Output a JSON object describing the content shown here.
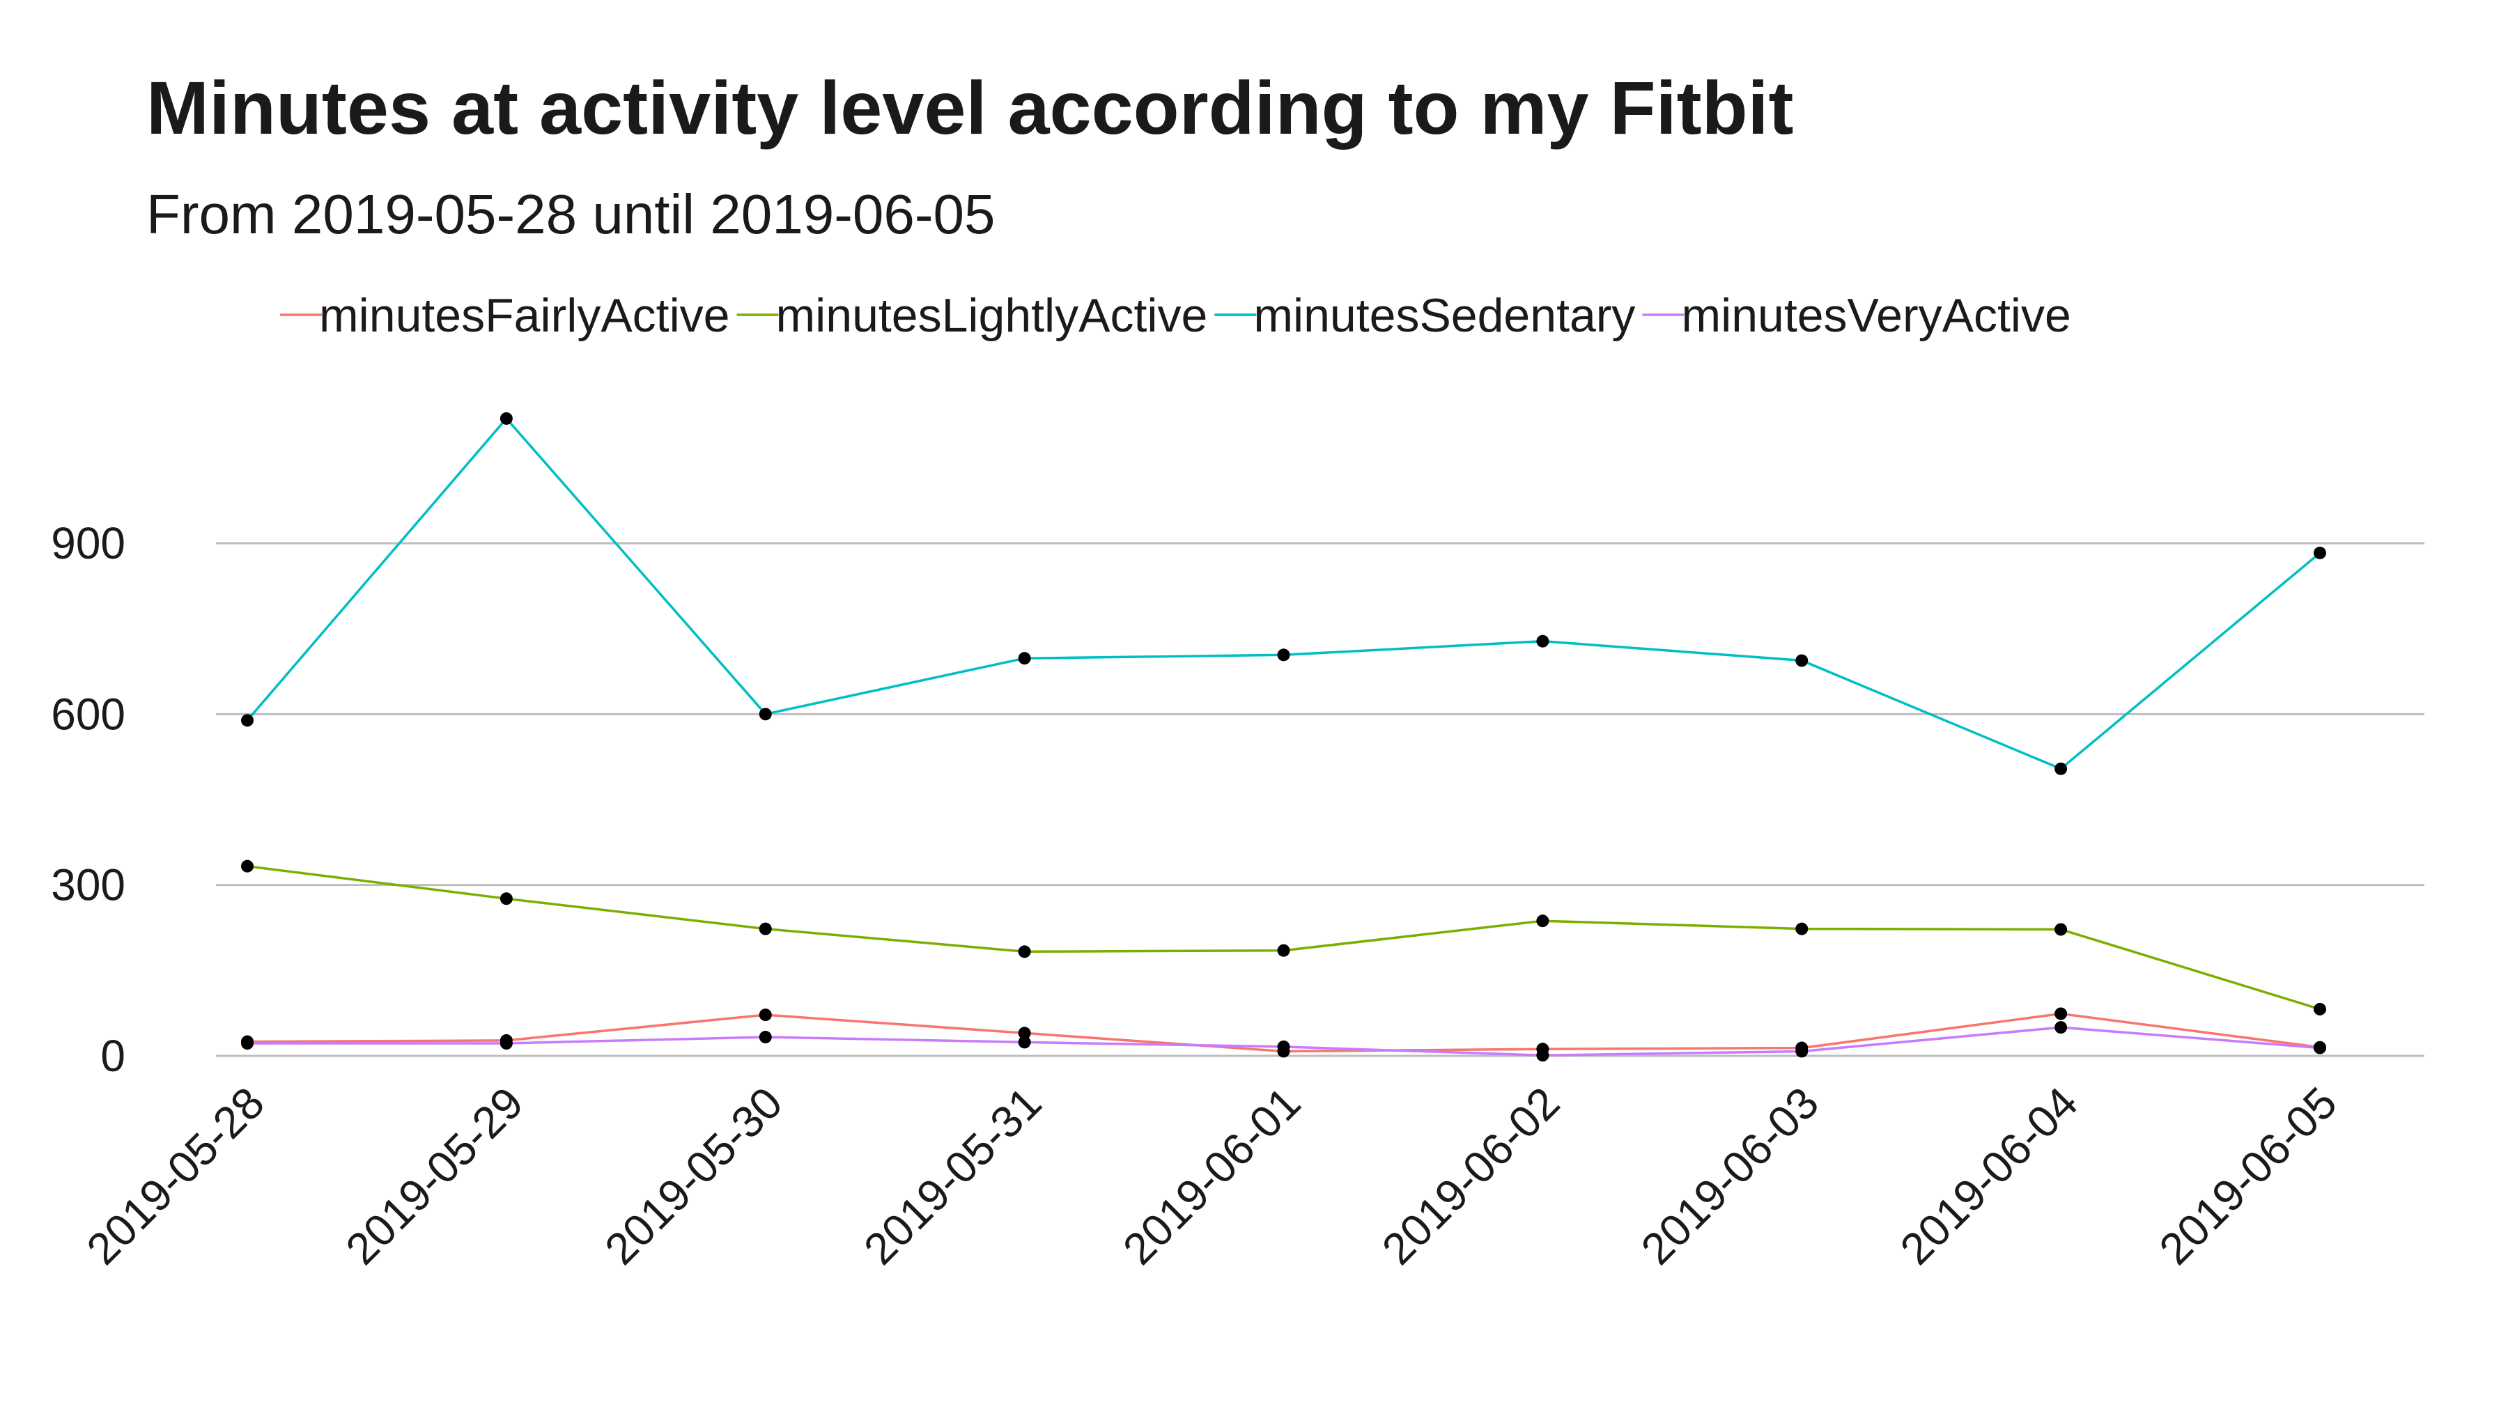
{
  "chart_data": {
    "type": "line",
    "title": "Minutes at activity level according to my Fitbit",
    "subtitle": "From 2019-05-28 until 2019-06-05",
    "xlabel": "",
    "ylabel": "",
    "x": [
      "2019-05-28",
      "2019-05-29",
      "2019-05-30",
      "2019-05-31",
      "2019-06-01",
      "2019-06-02",
      "2019-06-03",
      "2019-06-04",
      "2019-06-05"
    ],
    "ylim": [
      0,
      1150
    ],
    "yticks": [
      0,
      300,
      600,
      900
    ],
    "grid": "horizontal major",
    "legend_position": "top",
    "point_color": "#000000",
    "series": [
      {
        "name": "minutesFairlyActive",
        "color": "#F8766D",
        "values": [
          25,
          27,
          72,
          40,
          8,
          12,
          14,
          74,
          15
        ]
      },
      {
        "name": "minutesLightlyActive",
        "color": "#7CAE00",
        "values": [
          333,
          276,
          223,
          183,
          185,
          237,
          223,
          222,
          82
        ]
      },
      {
        "name": "minutesSedentary",
        "color": "#00BFC4",
        "values": [
          589,
          1119,
          600,
          698,
          704,
          728,
          694,
          504,
          883
        ]
      },
      {
        "name": "minutesVeryActive",
        "color": "#C77CFF",
        "values": [
          22,
          22,
          33,
          24,
          16,
          1,
          8,
          50,
          14
        ]
      }
    ]
  }
}
